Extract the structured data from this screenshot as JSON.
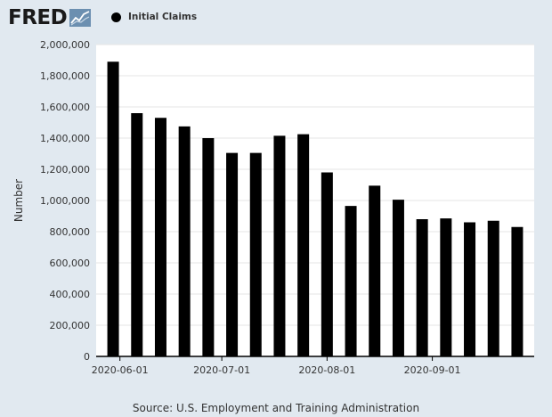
{
  "header": {
    "logo_text": "FRED",
    "logo_icon": "fred-chart-line-icon",
    "legend_label": "Initial Claims"
  },
  "source_text": "Source: U.S. Employment and Training Administration",
  "colors": {
    "background": "#e1e9f0",
    "plot_background": "#ffffff",
    "bar": "#000000",
    "grid": "#e6e6e6",
    "text": "#333333"
  },
  "chart_data": {
    "type": "bar",
    "ylabel": "Number",
    "ylim": [
      0,
      2000000
    ],
    "yticks": [
      0,
      200000,
      400000,
      600000,
      800000,
      1000000,
      1200000,
      1400000,
      1600000,
      1800000,
      2000000
    ],
    "ytick_labels": [
      "0",
      "200,000",
      "400,000",
      "600,000",
      "800,000",
      "1,000,000",
      "1,200,000",
      "1,400,000",
      "1,600,000",
      "1,800,000",
      "2,000,000"
    ],
    "xtick_labels": [
      "2020-06-01",
      "2020-07-01",
      "2020-08-01",
      "2020-09-01"
    ],
    "xtick_dates": [
      "2020-06-01",
      "2020-07-01",
      "2020-08-01",
      "2020-09-01"
    ],
    "x_range": [
      "2020-05-25",
      "2020-10-01"
    ],
    "grid": true,
    "legend_position": "top",
    "series": [
      {
        "name": "Initial Claims",
        "x": [
          "2020-05-30",
          "2020-06-06",
          "2020-06-13",
          "2020-06-20",
          "2020-06-27",
          "2020-07-04",
          "2020-07-11",
          "2020-07-18",
          "2020-07-25",
          "2020-08-01",
          "2020-08-08",
          "2020-08-15",
          "2020-08-22",
          "2020-08-29",
          "2020-09-05",
          "2020-09-12",
          "2020-09-19",
          "2020-09-26"
        ],
        "values": [
          1890000,
          1560000,
          1530000,
          1475000,
          1400000,
          1305000,
          1305000,
          1415000,
          1425000,
          1180000,
          965000,
          1095000,
          1005000,
          880000,
          885000,
          860000,
          870000,
          830000
        ]
      }
    ]
  }
}
